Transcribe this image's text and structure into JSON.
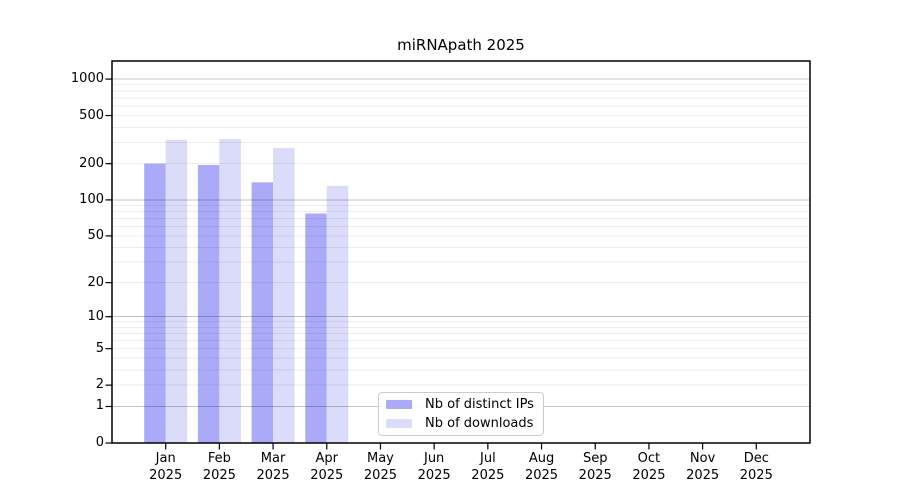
{
  "title": "miRNApath 2025",
  "colors": {
    "distinct_ips_bar": "#aaaaf8",
    "downloads_bar": "#dbdbfa",
    "major_gridline": "rgba(0,0,0,0.23)",
    "minor_gridline": "rgba(0,0,0,0.07)",
    "axis_frame": "#000000"
  },
  "chart_data": {
    "type": "bar",
    "title": "miRNApath 2025",
    "xlabel": "",
    "ylabel": "",
    "year": "2025",
    "categories": [
      "Jan",
      "Feb",
      "Mar",
      "Apr",
      "May",
      "Jun",
      "Jul",
      "Aug",
      "Sep",
      "Oct",
      "Nov",
      "Dec"
    ],
    "series": [
      {
        "name": "Nb of distinct IPs",
        "color": "#aaaaf8",
        "values": [
          200,
          195,
          140,
          77,
          0,
          0,
          0,
          0,
          0,
          0,
          0,
          0
        ]
      },
      {
        "name": "Nb of downloads",
        "color": "#dbdbfa",
        "values": [
          315,
          320,
          270,
          131,
          0,
          0,
          0,
          0,
          0,
          0,
          0,
          0
        ]
      }
    ],
    "y_scale": "log10(value+1)",
    "ylim": [
      0,
      1410
    ],
    "y_tick_labels": [
      "0",
      "1",
      "2",
      "5",
      "10",
      "20",
      "50",
      "100",
      "200",
      "500",
      "1000"
    ],
    "y_ticks": [
      0,
      1,
      2,
      5,
      10,
      20,
      50,
      100,
      200,
      500,
      1000
    ],
    "minor_gridlines": [
      2,
      3,
      4,
      5,
      6,
      7,
      8,
      9,
      20,
      30,
      40,
      50,
      60,
      70,
      80,
      90,
      200,
      300,
      400,
      500,
      600,
      700,
      800,
      900
    ],
    "major_gridlines": [
      1,
      10,
      100,
      1000
    ],
    "grid": true,
    "legend_position": "lower-center"
  }
}
